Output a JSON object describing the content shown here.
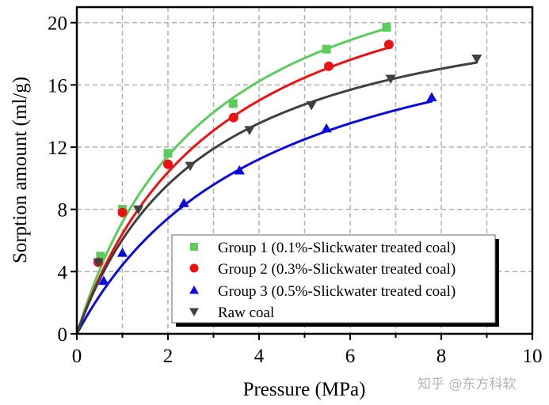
{
  "chart_data": {
    "type": "scatter",
    "title": "",
    "xlabel": "Pressure (MPa)",
    "ylabel": "Sorption amount (ml/g)",
    "xlim": [
      0,
      10
    ],
    "ylim": [
      0,
      21
    ],
    "xticks": [
      0,
      2,
      4,
      6,
      8,
      10
    ],
    "yticks": [
      0,
      4,
      8,
      12,
      16,
      20
    ],
    "grid": true,
    "legend_position": "bottom-right",
    "series": [
      {
        "name": "Group 1 (0.1%-Slickwater treated coal)",
        "marker": "square",
        "color": "#5ccc5c",
        "x": [
          0,
          0.52,
          1.0,
          2.0,
          3.43,
          5.48,
          6.8
        ],
        "y": [
          0,
          5.0,
          8.0,
          11.6,
          14.8,
          18.3,
          19.7
        ],
        "fit": {
          "model": "langmuir",
          "VL": 28,
          "PL": 2.9,
          "xmax": 6.8
        }
      },
      {
        "name": "Group 2 (0.3%-Slickwater treated coal)",
        "marker": "circle",
        "color": "#ee1111",
        "x": [
          0,
          0.47,
          1.0,
          2.0,
          3.44,
          5.53,
          6.85
        ],
        "y": [
          0,
          4.6,
          7.8,
          10.9,
          13.9,
          17.2,
          18.6
        ],
        "fit": {
          "model": "langmuir",
          "VL": 27,
          "PL": 3.2,
          "xmax": 6.85
        }
      },
      {
        "name": "Group 3 (0.5%-Slickwater treated coal)",
        "marker": "triangle-up",
        "color": "#0a0ae0",
        "x": [
          0,
          0.59,
          1.0,
          2.35,
          3.57,
          5.48,
          7.79
        ],
        "y": [
          0,
          3.4,
          5.2,
          8.4,
          10.5,
          13.2,
          15.2
        ],
        "fit": {
          "model": "langmuir",
          "VL": 23,
          "PL": 4.2,
          "xmax": 7.79
        }
      },
      {
        "name": "Raw coal",
        "marker": "triangle-down",
        "color": "#404040",
        "x": [
          0,
          0.47,
          1.35,
          2.49,
          3.79,
          5.15,
          6.89,
          8.78
        ],
        "y": [
          0,
          4.6,
          8.0,
          10.8,
          13.1,
          14.7,
          16.4,
          17.7
        ],
        "fit": {
          "model": "langmuir",
          "VL": 23,
          "PL": 2.8,
          "xmax": 8.78
        }
      }
    ]
  },
  "watermark": "知乎 @东方科软"
}
